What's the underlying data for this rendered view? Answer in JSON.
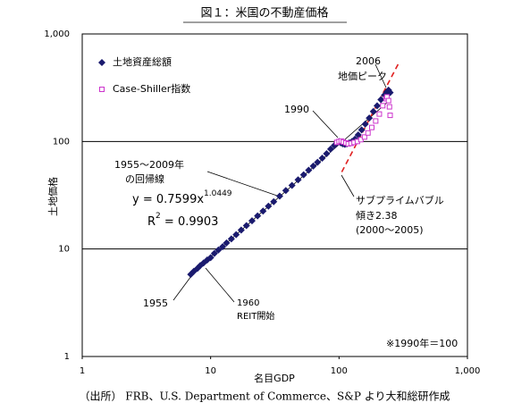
{
  "chart_data": {
    "type": "scatter",
    "title": "図１：米国の不動産価格",
    "source": "（出所） FRB、U.S. Department of Commerce、S&P より大和総研作成",
    "x_label": "名目GDP",
    "y_label": "土地価格",
    "log_x": true,
    "log_y": true,
    "grid": true,
    "legend": "upper left",
    "xlim": [
      1,
      1000
    ],
    "ylim": [
      1,
      1000
    ],
    "xticks": [
      1,
      10,
      100,
      {
        "value": 1000,
        "label": "1,000"
      }
    ],
    "yticks": [
      1,
      10,
      100,
      {
        "value": 1000,
        "label": "1,000"
      }
    ],
    "series": [
      {
        "name": "土地資産総額",
        "color": "#1a1a6e",
        "marker": "diamond",
        "x": [
          7.0,
          7.4,
          7.9,
          8.3,
          8.8,
          9.4,
          10.0,
          10.7,
          11.5,
          12.4,
          13.3,
          14.5,
          15.8,
          17.3,
          19.0,
          21.0,
          23.2,
          25.6,
          28.2,
          31.0,
          34.5,
          38.5,
          43,
          48,
          53,
          58,
          63,
          68,
          74,
          80,
          86,
          92,
          97,
          100,
          103,
          107,
          111,
          115,
          120,
          126,
          133,
          141,
          150,
          160,
          172,
          185,
          198,
          212,
          226,
          236,
          243,
          250
        ],
        "y": [
          5.8,
          6.2,
          6.6,
          7.0,
          7.4,
          7.9,
          8.3,
          9.1,
          9.8,
          10.5,
          11.4,
          12.4,
          13.6,
          15.0,
          16.5,
          18.3,
          20.3,
          22.5,
          25,
          27.5,
          31,
          35,
          39,
          44,
          49,
          54,
          59,
          64,
          70,
          77,
          85,
          92,
          97,
          100,
          97,
          95,
          94,
          95,
          97,
          100,
          105,
          115,
          128,
          145,
          165,
          190,
          215,
          245,
          270,
          290,
          300,
          285
        ]
      },
      {
        "name": "Case-Shiller指数",
        "color": "#cc33cc",
        "marker": "square",
        "x": [
          96,
          100,
          104,
          108,
          113,
          118,
          124,
          131,
          139,
          148,
          158,
          168,
          180,
          193,
          206,
          219,
          232,
          236,
          243,
          247,
          250
        ],
        "y": [
          98,
          100,
          101,
          99,
          97,
          95,
          96,
          98,
          100,
          104,
          110,
          120,
          135,
          155,
          180,
          215,
          250,
          260,
          240,
          210,
          175
        ]
      }
    ],
    "lines": [
      {
        "color": "#000000",
        "dashed": false,
        "x": [
          7,
          250
        ],
        "y": [
          5.8,
          243.6
        ]
      },
      {
        "color": "#e02020",
        "dashed": true,
        "x": [
          105,
          295
        ],
        "y": [
          52,
          550
        ]
      }
    ],
    "annotations": {
      "peak_year": "2006",
      "peak_label": "地価ピーク",
      "year_1990": "1990",
      "reg_period": "1955～2009年",
      "reg_label": "の回帰線",
      "eq_left": "y = 0.7599x",
      "eq_exp": "1.0449",
      "r2_r": "R",
      "r2_exp": "2",
      "r2_val": " = 0.9903",
      "bubble": "サブプライムバブル",
      "slope": "傾き2.38",
      "bubble_period": "(2000～2005)",
      "year_1955": "1955",
      "year_1960": "1960",
      "reit": "REIT開始",
      "base_note": "※1990年＝100"
    }
  }
}
